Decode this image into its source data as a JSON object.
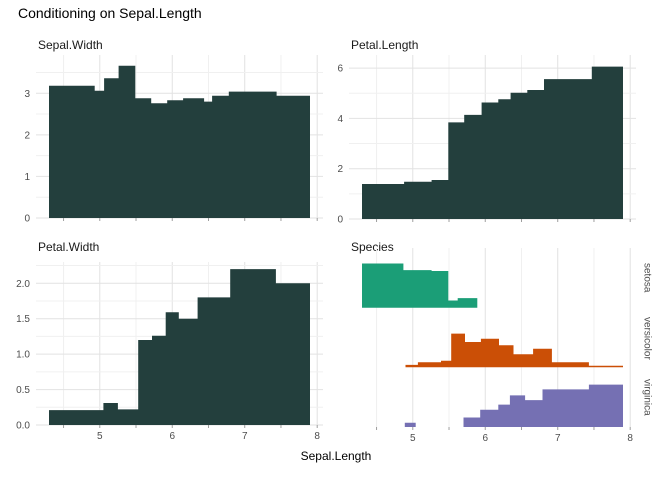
{
  "title": "Conditioning on Sepal.Length",
  "colors": {
    "bar_fill": "#233f3d",
    "setosa": "#1b9e77",
    "versicolor": "#cb4f06",
    "virginica": "#7570b3",
    "grid_major": "#e2e2e2",
    "grid_minor": "#f0f0f0",
    "tick": "#9e9e9e",
    "axis_text": "#4d4d4d"
  },
  "axis": {
    "xlabel": "Sepal.Length",
    "x_tick_labels": [
      "5",
      "6",
      "7",
      "8"
    ],
    "x_major": [
      5,
      6,
      7,
      8
    ],
    "x_minor": [
      4.5,
      5.5,
      6.5,
      7.5
    ],
    "x_domain": [
      4.12,
      8.08
    ]
  },
  "chart_data": {
    "type": "area",
    "subtype": "faceted-step-histograms",
    "x_variable": "Sepal.Length",
    "x_range": [
      4.3,
      7.9
    ],
    "panels": [
      {
        "title": "Sepal.Width",
        "y_ticks": [
          0,
          1,
          2,
          3
        ],
        "y_tick_labels": [
          "0",
          "1",
          "2",
          "3"
        ],
        "y_minor": [
          0.5,
          1.5,
          2.5,
          3.5
        ],
        "y_max": 3.92,
        "breaks": [
          4.3,
          4.93,
          5.06,
          5.26,
          5.49,
          5.71,
          5.93,
          6.15,
          6.44,
          6.55,
          6.78,
          7.44,
          7.9
        ],
        "values": [
          3.18,
          3.06,
          3.36,
          3.66,
          2.88,
          2.76,
          2.83,
          2.88,
          2.8,
          2.94,
          3.04,
          2.94
        ]
      },
      {
        "title": "Petal.Length",
        "y_ticks": [
          0,
          2,
          4,
          6
        ],
        "y_tick_labels": [
          "0",
          "2",
          "4",
          "6"
        ],
        "y_minor": [
          1,
          3,
          5
        ],
        "y_max": 6.52,
        "breaks": [
          4.3,
          4.88,
          5.26,
          5.49,
          5.71,
          5.95,
          6.18,
          6.35,
          6.58,
          6.81,
          7.47,
          7.9
        ],
        "values": [
          1.39,
          1.48,
          1.55,
          3.84,
          4.14,
          4.63,
          4.76,
          5.02,
          5.13,
          5.56,
          6.06
        ]
      },
      {
        "title": "Petal.Width",
        "y_ticks": [
          0,
          0.5,
          1,
          1.5,
          2
        ],
        "y_tick_labels": [
          "0.0",
          "0.5",
          "1.0",
          "1.5",
          "2.0"
        ],
        "y_minor": [
          0.25,
          0.75,
          1.25,
          1.75,
          2.25
        ],
        "y_max": 2.3,
        "breaks": [
          4.3,
          5.05,
          5.25,
          5.53,
          5.72,
          5.91,
          6.09,
          6.35,
          6.8,
          7.43,
          7.9
        ],
        "values": [
          0.21,
          0.31,
          0.22,
          1.2,
          1.26,
          1.59,
          1.5,
          1.8,
          2.2,
          2.0
        ]
      },
      {
        "title": "Species",
        "strips": [
          {
            "label": "setosa",
            "color_key": "setosa",
            "breaks": [
              4.3,
              4.87,
              5.26,
              5.49,
              5.62,
              5.89
            ],
            "heights": [
              0.74,
              0.63,
              0.615,
              0.12,
              0.16
            ]
          },
          {
            "label": "versicolor",
            "color_key": "versicolor",
            "breaks": [
              4.9,
              5.07,
              5.39,
              5.53,
              5.72,
              5.94,
              6.19,
              6.39,
              6.66,
              6.92,
              7.43,
              7.9
            ],
            "heights": [
              0.04,
              0.085,
              0.11,
              0.565,
              0.425,
              0.48,
              0.37,
              0.22,
              0.31,
              0.085,
              0.025
            ]
          },
          {
            "label": "virginica",
            "color_key": "virginica",
            "breaks": [
              4.89,
              5.04,
              5.7,
              5.93,
              6.18,
              6.34,
              6.55,
              6.79,
              7.43,
              7.9
            ],
            "heights": [
              0.07,
              0,
              0.16,
              0.29,
              0.375,
              0.53,
              0.45,
              0.63,
              0.71
            ]
          }
        ]
      }
    ]
  }
}
